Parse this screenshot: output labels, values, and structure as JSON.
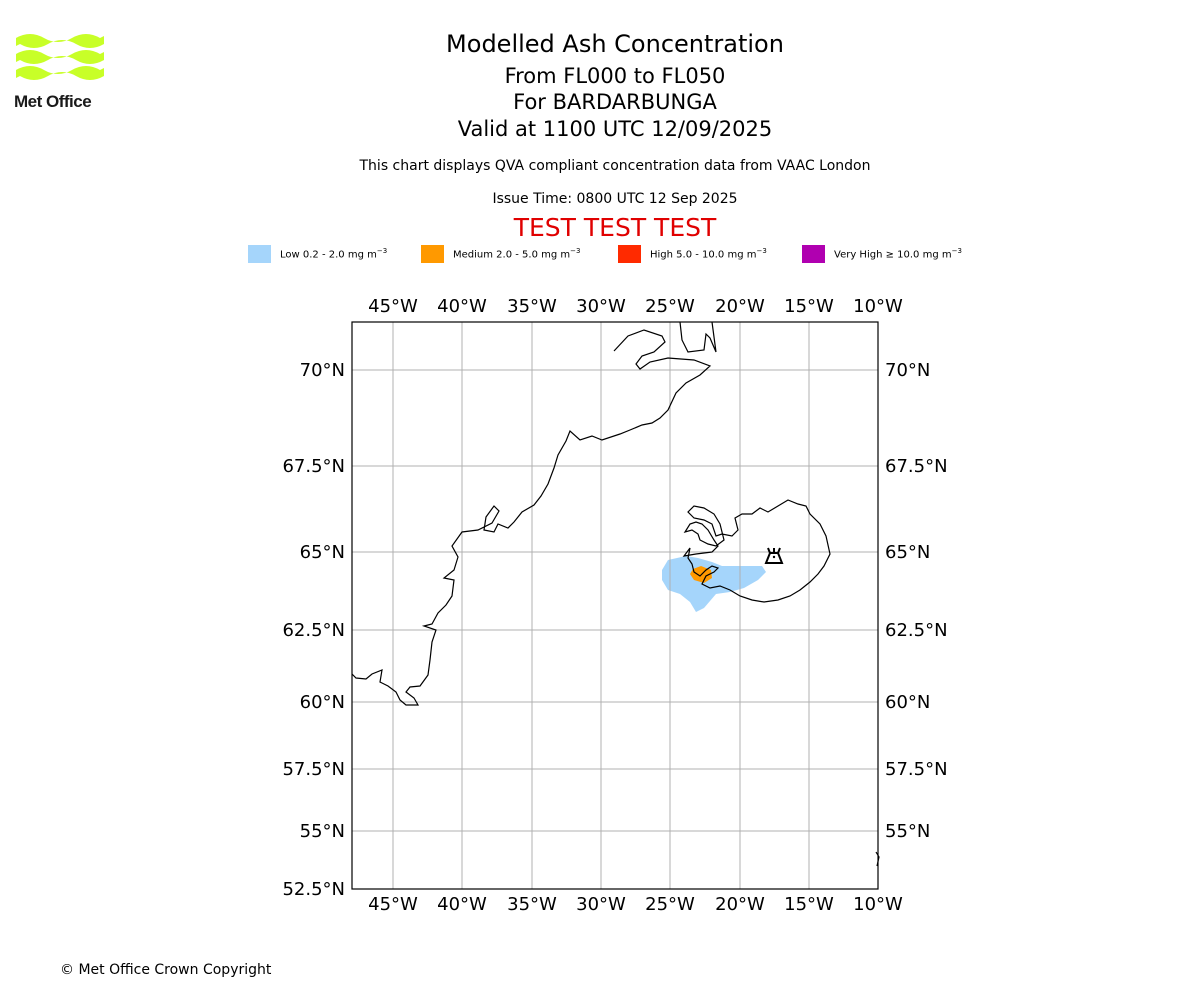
{
  "logo": {
    "text": "Met Office"
  },
  "header": {
    "title": "Modelled Ash Concentration",
    "levels": "From FL000 to FL050",
    "volcano": "For BARDARBUNGA",
    "valid": "Valid at 1100 UTC 12/09/2025",
    "description": "This chart displays QVA compliant concentration data from VAAC London",
    "issue_time": "Issue Time: 0800 UTC 12 Sep 2025",
    "test_banner": "TEST TEST TEST"
  },
  "legend": [
    {
      "label": "Low 0.2 - 2.0 mg m",
      "sup": "−3",
      "color": "#a5d5fb"
    },
    {
      "label": "Medium 2.0 - 5.0 mg m",
      "sup": "−3",
      "color": "#ff9900"
    },
    {
      "label": "High 5.0 - 10.0 mg m",
      "sup": "−3",
      "color": "#ff2a00"
    },
    {
      "label": "Very High  ≥  10.0 mg m",
      "sup": "−3",
      "color": "#b000b0"
    }
  ],
  "map": {
    "lon_labels": [
      "45°W",
      "40°W",
      "35°W",
      "30°W",
      "25°W",
      "20°W",
      "15°W",
      "10°W"
    ],
    "lat_labels": [
      "70°N",
      "67.5°N",
      "65°N",
      "62.5°N",
      "60°N",
      "57.5°N",
      "55°N",
      "52.5°N"
    ],
    "colors": {
      "land_outline": "#000000",
      "grid": "#b0b0b0",
      "low": "#a5d5fb",
      "medium": "#ff9900"
    },
    "volcano_icon": "volcano-icon"
  },
  "footer": {
    "copyright": "© Met Office Crown Copyright"
  }
}
